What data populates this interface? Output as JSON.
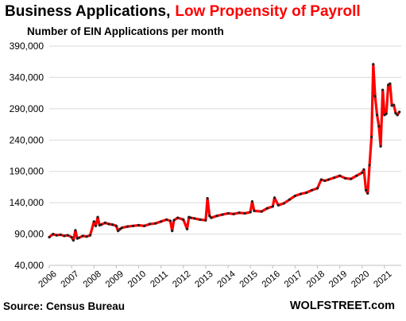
{
  "chart_data": {
    "type": "line",
    "title": "Business Applications,",
    "title_highlight": "Low Propensity of Payroll",
    "subtitle": "Number of EIN Applications per month",
    "ylim": [
      40000,
      390000
    ],
    "yticks": [
      "40,000",
      "90,000",
      "140,000",
      "190,000",
      "240,000",
      "290,000",
      "340,000",
      "390,000"
    ],
    "ytick_values": [
      40000,
      90000,
      140000,
      190000,
      240000,
      290000,
      340000,
      390000
    ],
    "xticks": [
      "2006",
      "2007",
      "2008",
      "2009",
      "2010",
      "2011",
      "2012",
      "2013",
      "2014",
      "2015",
      "2016",
      "2017",
      "2018",
      "2019",
      "2020",
      "2021"
    ],
    "xtick_values": [
      2006,
      2007,
      2008,
      2009,
      2010,
      2011,
      2012,
      2013,
      2014,
      2015,
      2016,
      2017,
      2018,
      2019,
      2020,
      2021
    ],
    "xlim": [
      2006,
      2021.75
    ],
    "grid": true,
    "series": [
      {
        "color": "#ff0000",
        "marker_color": "#222222",
        "x": [
          2006.0,
          2006.17,
          2006.33,
          2006.5,
          2006.67,
          2006.83,
          2007.0,
          2007.08,
          2007.17,
          2007.25,
          2007.33,
          2007.5,
          2007.67,
          2007.83,
          2008.0,
          2008.08,
          2008.17,
          2008.25,
          2008.33,
          2008.5,
          2008.67,
          2008.83,
          2009.0,
          2009.08,
          2009.17,
          2009.25,
          2009.5,
          2009.75,
          2010.0,
          2010.25,
          2010.5,
          2010.75,
          2011.0,
          2011.25,
          2011.42,
          2011.5,
          2011.58,
          2011.75,
          2012.0,
          2012.17,
          2012.25,
          2012.33,
          2012.5,
          2012.75,
          2013.0,
          2013.08,
          2013.17,
          2013.25,
          2013.5,
          2013.75,
          2014.0,
          2014.25,
          2014.5,
          2014.75,
          2015.0,
          2015.08,
          2015.17,
          2015.5,
          2015.75,
          2016.0,
          2016.08,
          2016.25,
          2016.5,
          2016.75,
          2017.0,
          2017.25,
          2017.5,
          2017.75,
          2018.0,
          2018.17,
          2018.33,
          2018.5,
          2018.75,
          2019.0,
          2019.25,
          2019.5,
          2019.75,
          2020.0,
          2020.08,
          2020.17,
          2020.25,
          2020.33,
          2020.42,
          2020.5,
          2020.58,
          2020.67,
          2020.75,
          2020.83,
          2020.92,
          2021.0,
          2021.08,
          2021.17,
          2021.25,
          2021.33,
          2021.42,
          2021.5,
          2021.58,
          2021.67
        ],
        "values": [
          85000,
          90000,
          88000,
          89000,
          87000,
          88000,
          85000,
          80000,
          96000,
          83000,
          84000,
          87000,
          86000,
          88000,
          110000,
          103000,
          117000,
          104000,
          105000,
          108000,
          106000,
          105000,
          103000,
          95000,
          98000,
          100000,
          102000,
          103000,
          104000,
          103000,
          106000,
          107000,
          110000,
          113000,
          111000,
          95000,
          112000,
          116000,
          113000,
          98000,
          117000,
          116000,
          115000,
          113000,
          112000,
          147000,
          119000,
          116000,
          119000,
          121000,
          123000,
          122000,
          124000,
          123000,
          125000,
          142000,
          127000,
          126000,
          131000,
          134000,
          148000,
          136000,
          139000,
          145000,
          151000,
          154000,
          156000,
          160000,
          163000,
          177000,
          175000,
          177000,
          180000,
          183000,
          179000,
          178000,
          183000,
          188000,
          193000,
          160000,
          155000,
          200000,
          245000,
          361000,
          310000,
          280000,
          262000,
          230000,
          320000,
          280000,
          282000,
          328000,
          330000,
          295000,
          296000,
          283000,
          280000,
          285000
        ]
      }
    ]
  },
  "footer": {
    "source": "Source: Census Bureau",
    "brand": "WOLFSTREET.com"
  }
}
